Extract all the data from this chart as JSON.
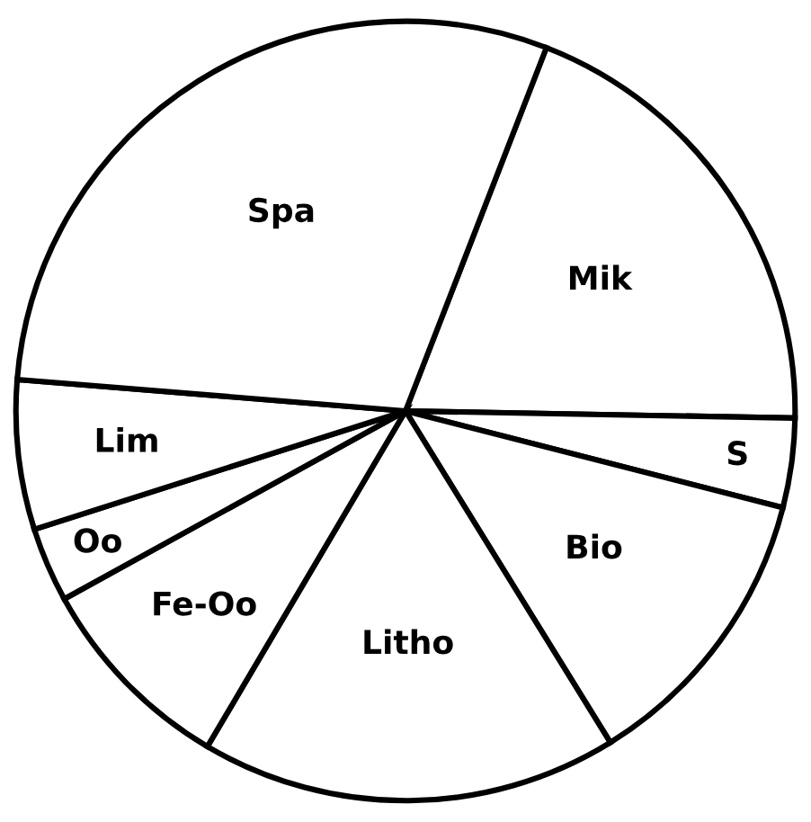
{
  "chart_data": {
    "type": "pie",
    "categories": [
      "Mik",
      "S",
      "Bio",
      "Litho",
      "Fe-Oo",
      "Oo",
      "Lim",
      "Spa"
    ],
    "values": [
      19.4,
      3.7,
      12.2,
      17.3,
      8.5,
      3.1,
      6.2,
      29.6
    ],
    "colors": [
      "#ffffff",
      "#ffffff",
      "#ffffff",
      "#ffffff",
      "#ffffff",
      "#ffffff",
      "#ffffff",
      "#ffffff"
    ]
  }
}
